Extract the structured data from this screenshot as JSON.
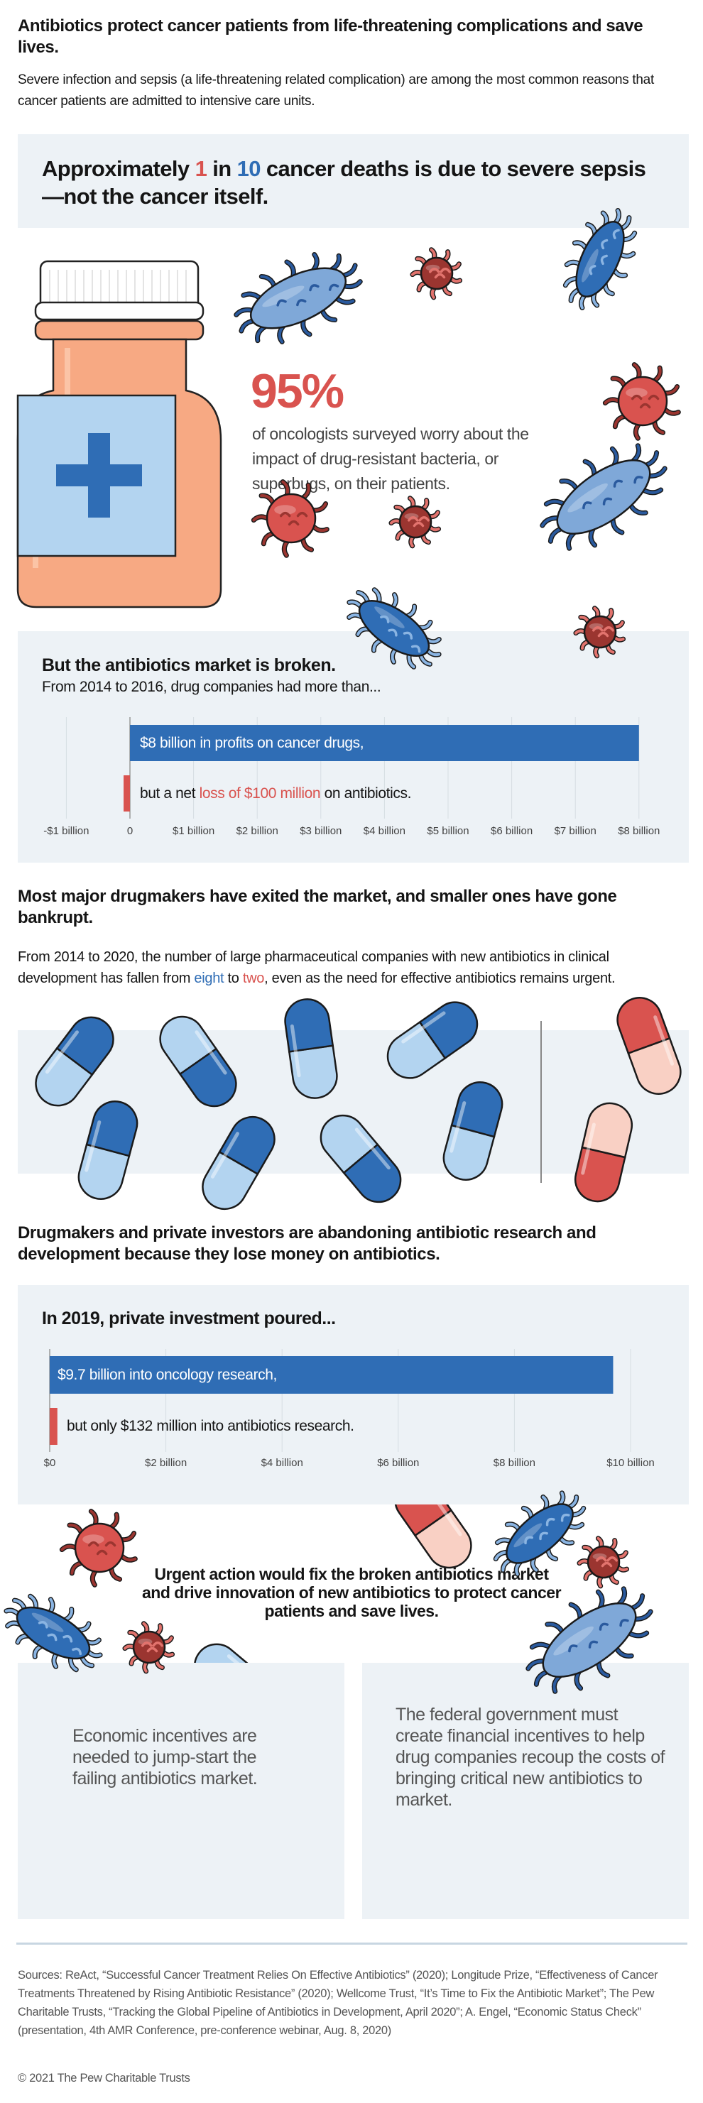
{
  "header": {
    "title": "Antibiotics protect cancer patients from life-threatening complications and save lives.",
    "intro": "Severe infection and sepsis (a life-threatening related complication) are among the most common reasons that cancer patients are admitted to intensive care units."
  },
  "callout": {
    "pre": "Approximately ",
    "n1": "1",
    "mid": " in ",
    "n2": "10",
    "post": " cancer deaths is due to severe sepsis—not the cancer itself."
  },
  "stat": {
    "value": "95%",
    "text": "of oncologists surveyed worry about the impact of drug-resistant bacteria, or superbugs, on their patients."
  },
  "colors": {
    "blue": "#2f6db5",
    "red": "#d9534f",
    "panel": "#edf2f6",
    "bottle": "#f7a983",
    "label": "#b3d4f0"
  },
  "chart_data": [
    {
      "type": "bar",
      "orientation": "horizontal",
      "title": "But the antibiotics market is broken.",
      "subtitle": "From 2014 to 2016, drug companies had more than...",
      "values": [
        8,
        -0.1
      ],
      "unit": "billion USD",
      "xlim": [
        -1,
        8
      ],
      "grid": true,
      "tick_values": [
        -1,
        0,
        1,
        2,
        3,
        4,
        5,
        6,
        7,
        8
      ],
      "tick_labels": [
        "-$1 billion",
        "0",
        "$1 billion",
        "$2 billion",
        "$3 billion",
        "$4 billion",
        "$5 billion",
        "$6 billion",
        "$7 billion",
        "$8 billion"
      ],
      "bar_colors": [
        "#2f6db5",
        "#d9534f"
      ],
      "bar_labels": [
        [
          {
            "text": "$8 billion",
            "style": "bold"
          },
          {
            "text": " in profits on cancer drugs,",
            "style": ""
          }
        ],
        [
          {
            "text": "but a net ",
            "style": ""
          },
          {
            "text": "loss of ",
            "style": "red"
          },
          {
            "text": "$100 million",
            "style": "red bold"
          },
          {
            "text": " on antibiotics.",
            "style": ""
          }
        ]
      ]
    },
    {
      "type": "bar",
      "orientation": "horizontal",
      "title": "In 2019, private investment poured...",
      "values": [
        9.7,
        0.132
      ],
      "unit": "billion USD",
      "xlim": [
        0,
        10
      ],
      "grid": true,
      "tick_values": [
        0,
        2,
        4,
        6,
        8,
        10
      ],
      "tick_labels": [
        "$0",
        "$2 billion",
        "$4 billion",
        "$6 billion",
        "$8 billion",
        "$10 billion"
      ],
      "bar_colors": [
        "#2f6db5",
        "#d9534f"
      ],
      "bar_labels": [
        [
          {
            "text": "$9.7 billion",
            "style": "bold"
          },
          {
            "text": " into oncology research,",
            "style": ""
          }
        ],
        [
          {
            "text": "but only ",
            "style": ""
          },
          {
            "text": "$132 million",
            "style": "bold"
          },
          {
            "text": " into antibiotics research.",
            "style": ""
          }
        ]
      ]
    }
  ],
  "section2": {
    "heading": "Most major drugmakers have exited the market, and smaller ones have gone bankrupt.",
    "para_pre": "From 2014 to 2020, the number of large pharmaceutical companies with new antibiotics in clinical development has fallen from ",
    "from": "eight",
    "mid": " to ",
    "to": "two",
    "para_post": ", even as the need for effective antibiotics remains urgent.",
    "pills_before": 8,
    "pills_after": 2
  },
  "section3": {
    "heading": "Drugmakers and private investors are abandoning antibiotic research and development because they lose money on antibiotics."
  },
  "action": {
    "text": "Urgent action would fix the broken antibiotics market and drive innovation of new antibiotics to protect cancer patients and save lives.",
    "boxes": [
      "Economic incentives are needed to jump-start the failing antibiotics market.",
      "The federal government must create financial incentives to help drug companies recoup the costs of bringing critical new antibiotics to market."
    ]
  },
  "footer": {
    "sources": "Sources: ReAct, “Successful Cancer Treatment Relies On Effective Antibiotics” (2020); Longitude Prize, “Effectiveness of Cancer Treatments Threatened by Rising Antibiotic Resistance” (2020); Wellcome Trust, “It’s Time to Fix the Antibiotic Market”; The Pew Charitable Trusts, “Tracking the Global Pipeline of Antibiotics in Development, April 2020”; A. Engel, “Economic Status Check” (presentation, 4th AMR Conference, pre-conference webinar, Aug. 8, 2020)",
    "copyright": "© 2021 The Pew Charitable Trusts"
  }
}
